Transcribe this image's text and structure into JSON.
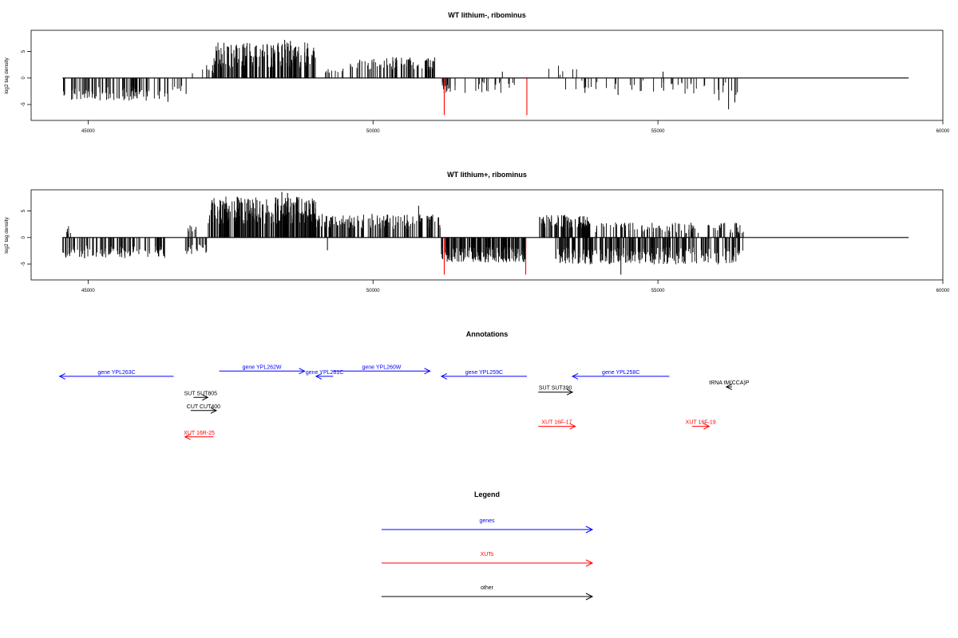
{
  "chart_data": [
    {
      "type": "bar",
      "title": "WT lithium-, ribominus",
      "ylabel": "log2 tag density",
      "xlabel": "",
      "xlim": [
        44000,
        60000
      ],
      "ylim": [
        -8,
        9
      ],
      "x_ticks": [
        "45000",
        "50000",
        "55000",
        "60000"
      ],
      "y_ticks": [
        "-5",
        "0",
        "5"
      ],
      "baseline_range": [
        44550,
        59400
      ],
      "grid": false,
      "legend": "none",
      "colors": {
        "main": "#000000",
        "highlight": "#ff0000"
      },
      "series": [
        {
          "regions": [
            {
              "x": [
                44550,
                46400
              ],
              "sign": -1,
              "mean": 2.6,
              "amp": 1.6,
              "count": 95
            },
            {
              "x": [
                46450,
                46700
              ],
              "sign": -1,
              "mean": 2.0,
              "amp": 1.0,
              "count": 6
            },
            {
              "x": [
                47000,
                47200
              ],
              "sign": 1,
              "mean": 1.5,
              "amp": 1.0,
              "count": 8
            },
            {
              "x": [
                47200,
                49000
              ],
              "sign": 1,
              "mean": 3.6,
              "amp": 3.0,
              "count": 170
            },
            {
              "x": [
                49100,
                49500
              ],
              "sign": 1,
              "mean": 1.3,
              "amp": 0.8,
              "count": 10
            },
            {
              "x": [
                49600,
                51100
              ],
              "sign": 1,
              "mean": 2.4,
              "amp": 1.5,
              "count": 80
            },
            {
              "x": [
                51200,
                52600
              ],
              "sign": -1,
              "mean": 1.5,
              "amp": 1.5,
              "count": 35
            },
            {
              "x": [
                53000,
                53600
              ],
              "sign": 1,
              "mean": 1.5,
              "amp": 1.8,
              "count": 6
            },
            {
              "x": [
                53300,
                55400
              ],
              "sign": -1,
              "mean": 1.2,
              "amp": 1.4,
              "count": 26
            },
            {
              "x": [
                55400,
                56400
              ],
              "sign": -1,
              "mean": 1.6,
              "amp": 1.6,
              "count": 18
            }
          ],
          "spikes": [
            {
              "x": 48450,
              "y": 7.2
            },
            {
              "x": 48550,
              "y": 7.0
            },
            {
              "x": 47350,
              "y": 4.5
            },
            {
              "x": 46400,
              "y": -4.5
            },
            {
              "x": 46720,
              "y": -3.0
            },
            {
              "x": 46830,
              "y": 0.9
            },
            {
              "x": 55090,
              "y": 1.2
            },
            {
              "x": 55100,
              "y": -2.4
            },
            {
              "x": 56070,
              "y": -4.2
            },
            {
              "x": 56240,
              "y": -5.9
            },
            {
              "x": 56350,
              "y": -4.6
            },
            {
              "x": 54300,
              "y": -3.2
            },
            {
              "x": 53720,
              "y": -2.8
            },
            {
              "x": 52270,
              "y": 1.2
            }
          ],
          "red_spikes": [
            {
              "x": 51250,
              "y": -7.0
            },
            {
              "x": 52700,
              "y": -7.0
            }
          ]
        }
      ]
    },
    {
      "type": "bar",
      "title": "WT lithium+, ribominus",
      "ylabel": "log2 tag density",
      "xlabel": "",
      "xlim": [
        44000,
        60000
      ],
      "ylim": [
        -8,
        9
      ],
      "x_ticks": [
        "45000",
        "50000",
        "55000",
        "60000"
      ],
      "y_ticks": [
        "-5",
        "0",
        "5"
      ],
      "baseline_range": [
        44550,
        59400
      ],
      "grid": false,
      "legend": "none",
      "colors": {
        "main": "#000000",
        "highlight": "#ff0000"
      },
      "series": [
        {
          "regions": [
            {
              "x": [
                44550,
                44700
              ],
              "sign": 1,
              "mean": 1.2,
              "amp": 1.0,
              "count": 6
            },
            {
              "x": [
                44550,
                46400
              ],
              "sign": -1,
              "mean": 2.4,
              "amp": 1.5,
              "count": 110
            },
            {
              "x": [
                46750,
                46900
              ],
              "sign": 1,
              "mean": 1.5,
              "amp": 0.8,
              "count": 8
            },
            {
              "x": [
                46700,
                47100
              ],
              "sign": -1,
              "mean": 2.0,
              "amp": 1.2,
              "count": 20
            },
            {
              "x": [
                47100,
                49000
              ],
              "sign": 1,
              "mean": 4.4,
              "amp": 3.2,
              "count": 260
            },
            {
              "x": [
                49000,
                51200
              ],
              "sign": 1,
              "mean": 2.6,
              "amp": 1.8,
              "count": 150
            },
            {
              "x": [
                51200,
                52700
              ],
              "sign": -1,
              "mean": 2.8,
              "amp": 1.8,
              "count": 180
            },
            {
              "x": [
                52900,
                53800
              ],
              "sign": 1,
              "mean": 2.6,
              "amp": 1.6,
              "count": 90
            },
            {
              "x": [
                53700,
                56500
              ],
              "sign": 1,
              "mean": 1.5,
              "amp": 1.3,
              "count": 120
            },
            {
              "x": [
                53200,
                56500
              ],
              "sign": -1,
              "mean": 3.0,
              "amp": 2.0,
              "count": 260
            }
          ],
          "spikes": [
            {
              "x": 48400,
              "y": 8.6
            },
            {
              "x": 48500,
              "y": 8.4
            },
            {
              "x": 50800,
              "y": 6.0
            },
            {
              "x": 49200,
              "y": -2.4
            },
            {
              "x": 54350,
              "y": -7.0
            },
            {
              "x": 50550,
              "y": 4.2
            }
          ],
          "red_spikes": [
            {
              "x": 51250,
              "y": -7.0
            },
            {
              "x": 52680,
              "y": -7.0
            }
          ]
        }
      ]
    },
    {
      "type": "annotation",
      "title": "Annotations",
      "xlim": [
        44000,
        60000
      ],
      "features": [
        {
          "label": "gene YPL263C",
          "start": 46500,
          "end": 44500,
          "row": 3,
          "color": "#0000ff"
        },
        {
          "label": "gene YPL262W",
          "start": 47300,
          "end": 48800,
          "row": 1,
          "color": "#0000ff"
        },
        {
          "label": "gene YPL261C",
          "start": 49300,
          "end": 49000,
          "row": 3,
          "color": "#0000ff"
        },
        {
          "label": "gene YPL260W",
          "start": 49300,
          "end": 51000,
          "row": 1,
          "color": "#0000ff"
        },
        {
          "label": "gene YPL259C",
          "start": 52700,
          "end": 51200,
          "row": 3,
          "color": "#0000ff"
        },
        {
          "label": "gene YPL258C",
          "start": 55200,
          "end": 53500,
          "row": 3,
          "color": "#0000ff"
        },
        {
          "label": "tRNA tM(CCA)P",
          "start": 56300,
          "end": 56200,
          "row": 7,
          "color": "#000000"
        },
        {
          "label": "SUT SUT805",
          "start": 46850,
          "end": 47100,
          "row": 11,
          "color": "#000000"
        },
        {
          "label": "CUT CUT400",
          "start": 46800,
          "end": 47250,
          "row": 16,
          "color": "#000000"
        },
        {
          "label": "SUT SUT390",
          "start": 52900,
          "end": 53500,
          "row": 9,
          "color": "#000000"
        },
        {
          "label": "XUT 16R-25",
          "start": 47200,
          "end": 46700,
          "row": 26,
          "color": "#ff0000"
        },
        {
          "label": "XUT 16F-17",
          "start": 52900,
          "end": 53550,
          "row": 22,
          "color": "#ff0000"
        },
        {
          "label": "XUT 16F-19",
          "start": 55600,
          "end": 55900,
          "row": 22,
          "color": "#ff0000"
        }
      ]
    },
    {
      "type": "legend",
      "title": "Legend",
      "items": [
        {
          "label": "genes",
          "color": "#0000ff"
        },
        {
          "label": "XUTs",
          "color": "#ff0000"
        },
        {
          "label": "other",
          "color": "#000000"
        }
      ]
    }
  ]
}
